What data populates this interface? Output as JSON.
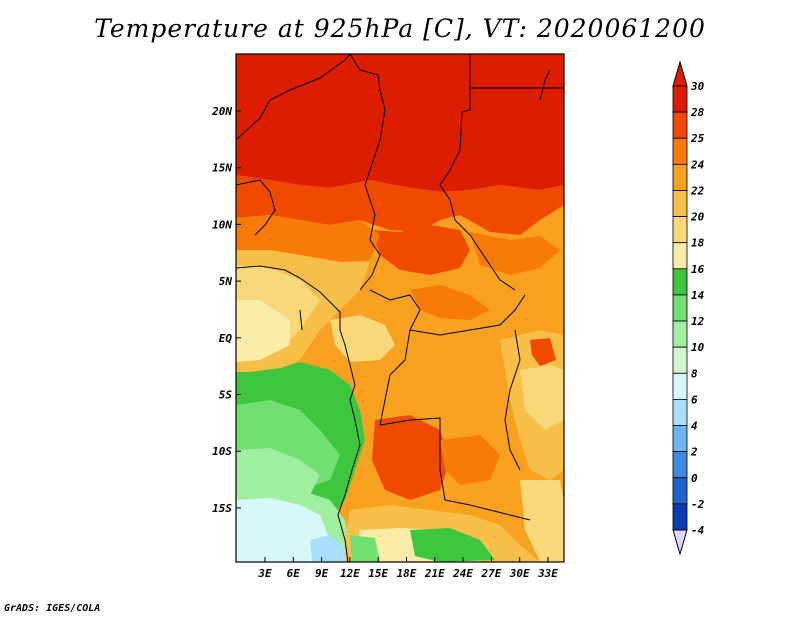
{
  "title": "Temperature at 925hPa [C], VT: 2020061200",
  "credit": "GrADS: IGES/COLA",
  "lon_ticks": [
    "3E",
    "6E",
    "9E",
    "12E",
    "15E",
    "18E",
    "21E",
    "24E",
    "27E",
    "30E",
    "33E"
  ],
  "lat_ticks": [
    "20N",
    "15N",
    "10N",
    "5N",
    "EQ",
    "5S",
    "10S",
    "15S"
  ],
  "colorbar": {
    "labels": [
      "30",
      "28",
      "25",
      "24",
      "22",
      "20",
      "18",
      "16",
      "14",
      "12",
      "10",
      "8",
      "6",
      "4",
      "2",
      "0",
      "-2",
      "-4"
    ],
    "colors": [
      "#8c0a00",
      "#dd1d00",
      "#f04a00",
      "#f87a08",
      "#f8a020",
      "#f8bf48",
      "#f8d878",
      "#f8eca8",
      "#3ec63e",
      "#70e070",
      "#a0eea0",
      "#d2f8d2",
      "#d6f8f8",
      "#aae0ff",
      "#6cb4f0",
      "#3c8ce0",
      "#1e64cc",
      "#0a3cb4",
      "#00008a"
    ],
    "top_color": "#dd1d00",
    "bottom_color": "#dcd8f8"
  },
  "legend_colors": {
    "red_30": "#dd1d00",
    "orange_28": "#f04a00",
    "orange_25": "#f87a08",
    "orange_24": "#f8a020",
    "yellow_22": "#f8bf48",
    "yellow_20": "#f8d878",
    "pale_18": "#f8eca8",
    "green_16": "#3ec63e",
    "green_14": "#70e070",
    "green_12": "#a0eea0",
    "pale_10": "#d6f8f8",
    "blue_8": "#aae0ff"
  }
}
